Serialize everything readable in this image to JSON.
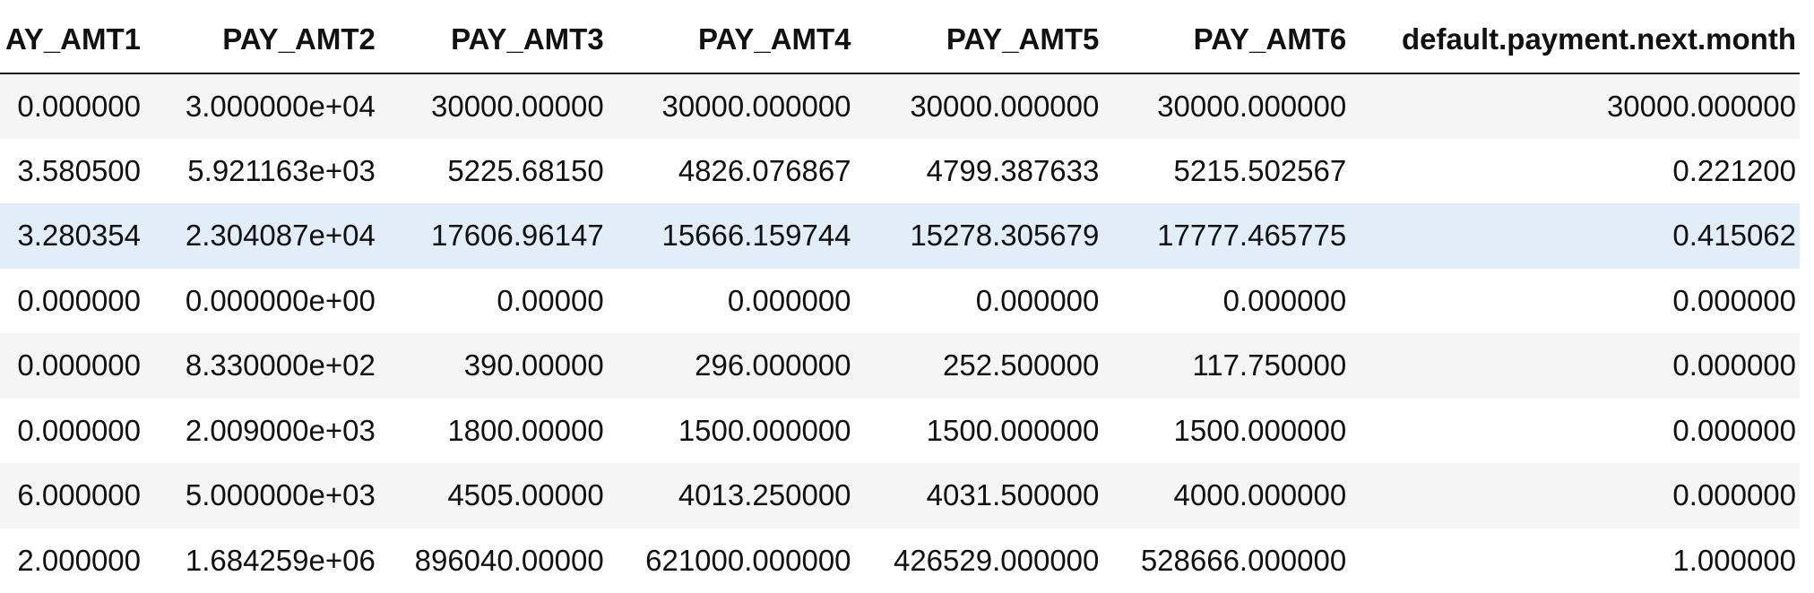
{
  "table": {
    "headers": [
      "AY_AMT1",
      "PAY_AMT2",
      "PAY_AMT3",
      "PAY_AMT4",
      "PAY_AMT5",
      "PAY_AMT6",
      "default.payment.next.month"
    ],
    "rows": [
      [
        "0.000000",
        "3.000000e+04",
        "30000.00000",
        "30000.000000",
        "30000.000000",
        "30000.000000",
        "30000.000000"
      ],
      [
        "3.580500",
        "5.921163e+03",
        "5225.68150",
        "4826.076867",
        "4799.387633",
        "5215.502567",
        "0.221200"
      ],
      [
        "3.280354",
        "2.304087e+04",
        "17606.96147",
        "15666.159744",
        "15278.305679",
        "17777.465775",
        "0.415062"
      ],
      [
        "0.000000",
        "0.000000e+00",
        "0.00000",
        "0.000000",
        "0.000000",
        "0.000000",
        "0.000000"
      ],
      [
        "0.000000",
        "8.330000e+02",
        "390.00000",
        "296.000000",
        "252.500000",
        "117.750000",
        "0.000000"
      ],
      [
        "0.000000",
        "2.009000e+03",
        "1800.00000",
        "1500.000000",
        "1500.000000",
        "1500.000000",
        "0.000000"
      ],
      [
        "6.000000",
        "5.000000e+03",
        "4505.00000",
        "4013.250000",
        "4031.500000",
        "4000.000000",
        "0.000000"
      ],
      [
        "2.000000",
        "1.684259e+06",
        "896040.00000",
        "621000.000000",
        "426529.000000",
        "528666.000000",
        "1.000000"
      ]
    ]
  },
  "colors": {
    "row_stripe": "#f5f5f5",
    "row_hover": "#e1edf9",
    "header_rule": "#111111"
  }
}
